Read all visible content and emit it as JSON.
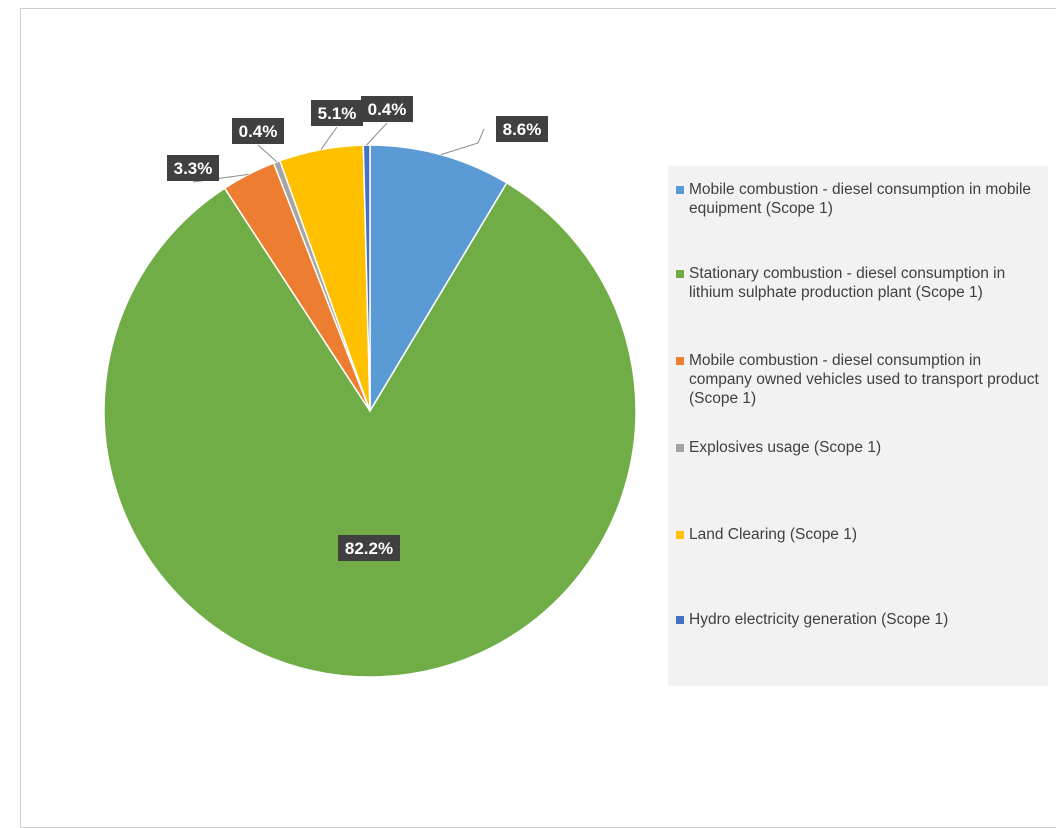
{
  "chart_data": {
    "type": "pie",
    "slices": [
      {
        "label": "Mobile combustion - diesel consumption in mobile equipment  (Scope 1)",
        "value": 8.6,
        "data_label": "8.6%",
        "color": "#5b9bd5"
      },
      {
        "label": "Stationary combustion - diesel consumption in lithium sulphate production plant (Scope 1)",
        "value": 82.2,
        "data_label": "82.2%",
        "color": "#70ad47"
      },
      {
        "label": "Mobile combustion - diesel consumption in company owned vehicles used to transport product (Scope 1)",
        "value": 3.3,
        "data_label": "3.3%",
        "color": "#ed7d31"
      },
      {
        "label": "Explosives usage (Scope 1)",
        "value": 0.4,
        "data_label": "0.4%",
        "color": "#a5a5a5"
      },
      {
        "label": "Land Clearing (Scope 1)",
        "value": 5.1,
        "data_label": "5.1%",
        "color": "#ffc000"
      },
      {
        "label": "Hydro electricity generation (Scope 1)",
        "value": 0.4,
        "data_label": "0.4%",
        "color": "#4472c4"
      }
    ],
    "legend_position": "right",
    "label_background": "#404040"
  },
  "legend": {
    "items": [
      "Mobile combustion - diesel consumption in mobile equipment  (Scope 1)",
      "Stationary combustion - diesel consumption in lithium sulphate production plant (Scope 1)",
      "Mobile combustion - diesel consumption in company owned vehicles used to transport product (Scope 1)",
      "Explosives usage (Scope 1)",
      "Land Clearing (Scope 1)",
      "Hydro electricity generation (Scope 1)"
    ]
  }
}
